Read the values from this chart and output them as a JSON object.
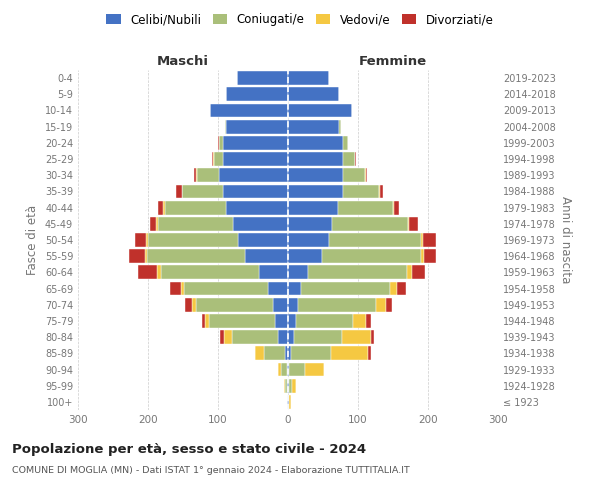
{
  "age_groups": [
    "100+",
    "95-99",
    "90-94",
    "85-89",
    "80-84",
    "75-79",
    "70-74",
    "65-69",
    "60-64",
    "55-59",
    "50-54",
    "45-49",
    "40-44",
    "35-39",
    "30-34",
    "25-29",
    "20-24",
    "15-19",
    "10-14",
    "5-9",
    "0-4"
  ],
  "birth_years": [
    "≤ 1923",
    "1924-1928",
    "1929-1933",
    "1934-1938",
    "1939-1943",
    "1944-1948",
    "1949-1953",
    "1954-1958",
    "1959-1963",
    "1964-1968",
    "1969-1973",
    "1974-1978",
    "1979-1983",
    "1984-1988",
    "1989-1993",
    "1994-1998",
    "1999-2003",
    "2004-2008",
    "2009-2013",
    "2014-2018",
    "2019-2023"
  ],
  "male_celibi": [
    2,
    2,
    2,
    5,
    15,
    18,
    22,
    28,
    42,
    62,
    72,
    78,
    88,
    93,
    98,
    93,
    93,
    88,
    112,
    88,
    73
  ],
  "male_coniugati": [
    0,
    2,
    8,
    30,
    65,
    95,
    110,
    120,
    140,
    140,
    128,
    108,
    88,
    58,
    32,
    13,
    5,
    2,
    0,
    0,
    0
  ],
  "male_vedovi": [
    0,
    2,
    5,
    12,
    12,
    5,
    5,
    5,
    5,
    3,
    3,
    2,
    2,
    1,
    1,
    1,
    1,
    0,
    0,
    0,
    0
  ],
  "male_divorziati": [
    0,
    0,
    0,
    0,
    5,
    5,
    10,
    15,
    28,
    22,
    16,
    9,
    8,
    8,
    4,
    2,
    1,
    0,
    0,
    0,
    0
  ],
  "female_nubili": [
    2,
    2,
    2,
    4,
    9,
    11,
    14,
    18,
    28,
    48,
    58,
    63,
    72,
    78,
    78,
    78,
    78,
    73,
    92,
    73,
    58
  ],
  "female_coniugate": [
    0,
    4,
    22,
    58,
    68,
    82,
    112,
    128,
    142,
    142,
    132,
    108,
    78,
    52,
    32,
    18,
    7,
    3,
    0,
    0,
    0
  ],
  "female_vedove": [
    2,
    5,
    28,
    52,
    42,
    18,
    14,
    9,
    7,
    4,
    3,
    2,
    2,
    1,
    1,
    0,
    0,
    0,
    0,
    0,
    0
  ],
  "female_divorziate": [
    0,
    0,
    0,
    4,
    4,
    7,
    9,
    13,
    18,
    18,
    18,
    13,
    7,
    4,
    2,
    1,
    1,
    0,
    0,
    0,
    0
  ],
  "color_celibi": "#4472C4",
  "color_coniugati": "#AABF7A",
  "color_vedovi": "#F5C842",
  "color_divorziati": "#C0312B",
  "legend_labels": [
    "Celibi/Nubili",
    "Coniugati/e",
    "Vedovi/e",
    "Divorziati/e"
  ],
  "xlim": 300,
  "title": "Popolazione per età, sesso e stato civile - 2024",
  "subtitle": "COMUNE DI MOGLIA (MN) - Dati ISTAT 1° gennaio 2024 - Elaborazione TUTTITALIA.IT",
  "header_left": "Maschi",
  "header_right": "Femmine",
  "ylabel_left": "Fasce di età",
  "ylabel_right": "Anni di nascita",
  "bg_color": "#ffffff",
  "grid_color": "#cccccc",
  "tick_color": "#777777",
  "title_color": "#222222",
  "subtitle_color": "#555555"
}
